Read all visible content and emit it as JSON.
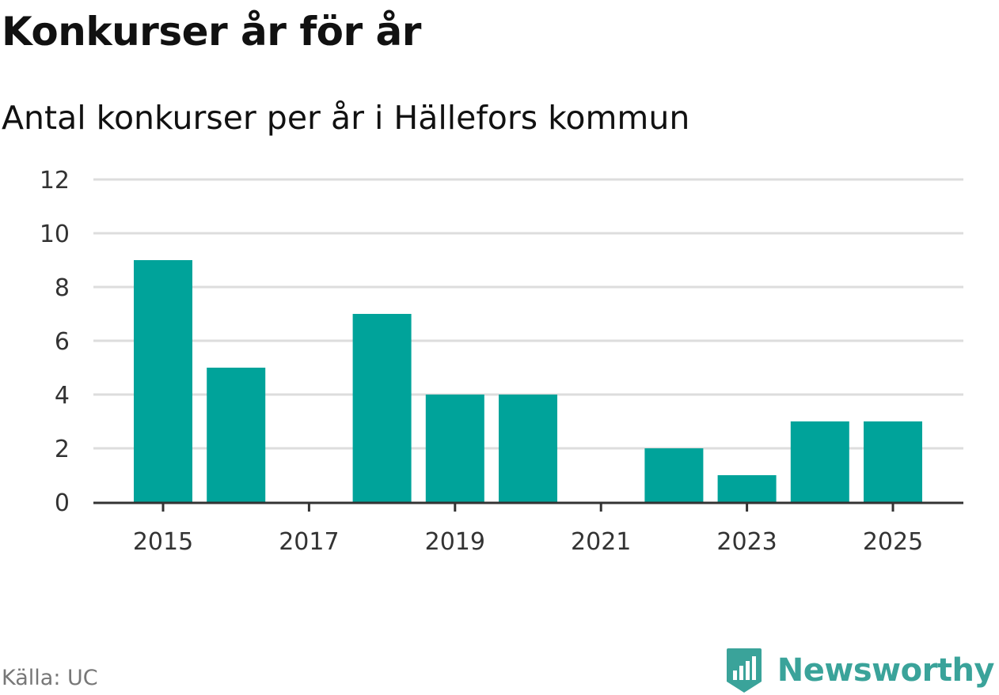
{
  "header": {
    "title": "Konkurser år för år",
    "subtitle": "Antal konkurser per år i Hällefors kommun"
  },
  "footer": {
    "source": "Källa: UC",
    "brand": "Newsworthy",
    "brand_icon": "newsworthy-logo-icon",
    "brand_color": "#3aa39a"
  },
  "chart_data": {
    "type": "bar",
    "title": "Konkurser år för år",
    "subtitle": "Antal konkurser per år i Hällefors kommun",
    "xlabel": "",
    "ylabel": "",
    "categories": [
      2015,
      2016,
      2017,
      2018,
      2019,
      2020,
      2021,
      2022,
      2023,
      2024,
      2025
    ],
    "values": [
      9,
      5,
      0,
      7,
      4,
      4,
      0,
      2,
      1,
      3,
      3
    ],
    "x_tick_labels": [
      "2015",
      "2017",
      "2019",
      "2021",
      "2023",
      "2025"
    ],
    "y_ticks": [
      0,
      2,
      4,
      6,
      8,
      10,
      12
    ],
    "ylim": [
      0,
      12
    ],
    "grid": true,
    "legend": "none",
    "bar_color": "#00a39a",
    "grid_color": "#dddddd",
    "axis_color": "#333333"
  }
}
